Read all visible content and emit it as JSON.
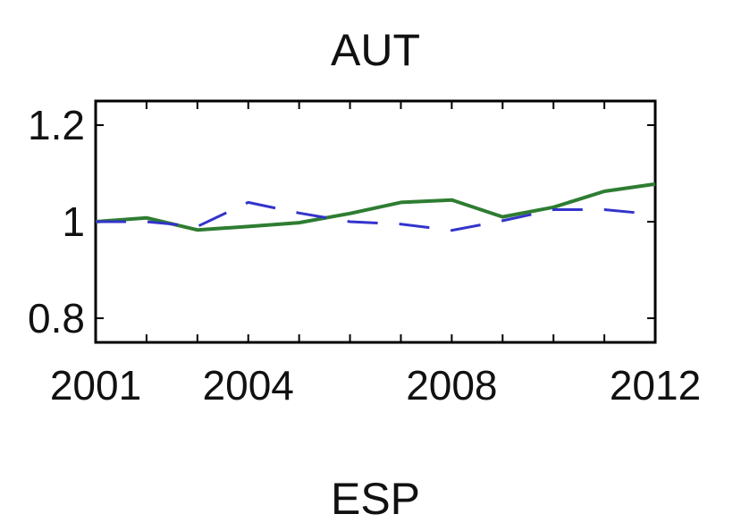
{
  "chart_data": {
    "type": "line",
    "title": "AUT",
    "xlabel": "",
    "ylabel": "",
    "x": [
      2001,
      2002,
      2003,
      2004,
      2005,
      2006,
      2007,
      2008,
      2009,
      2010,
      2011,
      2012
    ],
    "xlim": [
      2001,
      2012
    ],
    "ylim": [
      0.75,
      1.25
    ],
    "xticks": [
      2001,
      2004,
      2008,
      2012
    ],
    "yticks": [
      0.8,
      1,
      1.2
    ],
    "xtick_labels": [
      "2001",
      "2004",
      "2008",
      "2012"
    ],
    "ytick_labels": [
      "0.8",
      "1",
      "1.2"
    ],
    "grid": false,
    "series": [
      {
        "style": "solid",
        "color": "#2e7d32",
        "values": [
          1.0,
          1.008,
          0.983,
          0.99,
          0.998,
          1.017,
          1.04,
          1.045,
          1.01,
          1.03,
          1.063,
          1.078
        ]
      },
      {
        "style": "dashed",
        "color": "#3333cc",
        "values": [
          1.0,
          1.0,
          0.99,
          1.04,
          1.018,
          1.0,
          0.995,
          0.982,
          1.002,
          1.025,
          1.025,
          1.015
        ]
      }
    ]
  },
  "next_panel": {
    "title": "ESP"
  }
}
